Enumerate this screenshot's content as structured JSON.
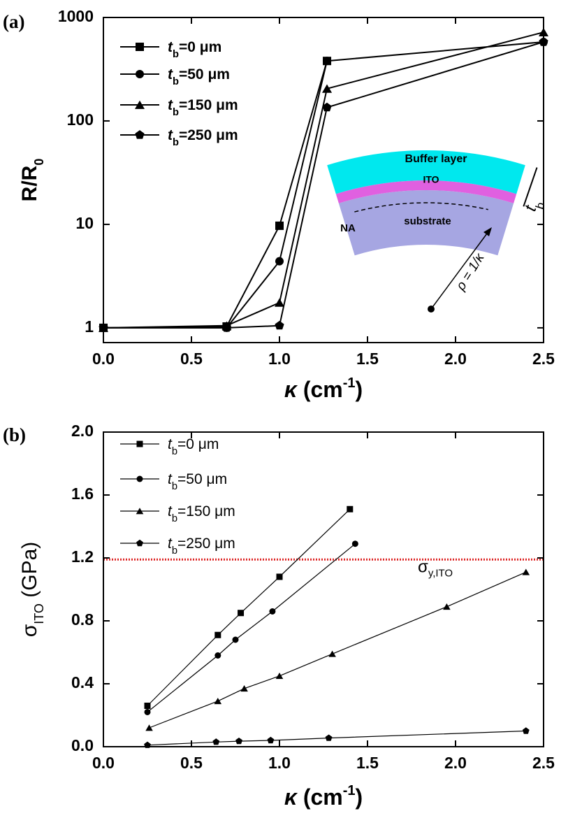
{
  "chart_data": [
    {
      "type": "line",
      "panel_label": "(a)",
      "y_scale": "log",
      "legend": "upper left",
      "x_label": [
        "κ",
        " (cm",
        "-1",
        ")"
      ],
      "y_label": [
        "R/R",
        "0"
      ],
      "x": [
        0,
        0.7,
        1.0,
        1.27,
        2.5
      ],
      "xlim": [
        0,
        2.5
      ],
      "xticks": [
        {
          "value": 0,
          "label": "0.0"
        },
        0.5,
        {
          "value": 1,
          "label": "1.0"
        },
        1.5,
        {
          "value": 2,
          "label": "2.0"
        },
        2.5
      ],
      "ylim": [
        0.72,
        1000
      ],
      "yticks": [
        1,
        10,
        100,
        1000
      ],
      "series": [
        {
          "name": "tb=0 μm",
          "color": "#000000",
          "marker": "square",
          "values": [
            1,
            1.03,
            9.7,
            380,
            null
          ]
        },
        {
          "name": "tb=50 μm",
          "color": "#000000",
          "marker": "circle",
          "values": [
            1,
            1.0,
            4.4,
            380,
            580
          ]
        },
        {
          "name": "tb=150 μm",
          "color": "#000000",
          "marker": "triangle",
          "values": [
            1,
            1.05,
            1.75,
            205,
            720
          ]
        },
        {
          "name": "tb=250 μm",
          "color": "#000000",
          "marker": "pentagon",
          "values": [
            1,
            1.0,
            1.05,
            135,
            580
          ]
        }
      ],
      "inset_labels": {
        "buffer": "Buffer layer",
        "ito": "ITO",
        "substrate": "substrate",
        "na": "NA",
        "thickness": "tb",
        "radius": "ρ = 1/κ"
      }
    },
    {
      "type": "line",
      "panel_label": "(b)",
      "legend": "upper left",
      "x_label": [
        "κ",
        " (cm",
        "-1",
        ")"
      ],
      "y_label": [
        "σ",
        "ITO",
        " (GPa)"
      ],
      "xlim": [
        0,
        2.5
      ],
      "xticks": [
        {
          "value": 0,
          "label": "0.0"
        },
        0.5,
        {
          "value": 1,
          "label": "1.0"
        },
        1.5,
        {
          "value": 2,
          "label": "2.0"
        },
        2.5
      ],
      "ylim": [
        0,
        2.0
      ],
      "yticks": [
        {
          "value": 0,
          "label": "0.0"
        },
        0.4,
        0.8,
        1.2,
        1.6,
        {
          "value": 2,
          "label": "2.0"
        }
      ],
      "series": [
        {
          "name": "tb=0 μm",
          "color": "#000000",
          "marker": "square",
          "x": [
            0.25,
            0.65,
            0.78,
            1.0,
            1.4
          ],
          "values": [
            0.26,
            0.71,
            0.85,
            1.08,
            1.51
          ]
        },
        {
          "name": "tb=50 μm",
          "color": "#000000",
          "marker": "circle",
          "x": [
            0.25,
            0.65,
            0.75,
            0.96,
            1.43
          ],
          "values": [
            0.22,
            0.58,
            0.68,
            0.86,
            1.29
          ]
        },
        {
          "name": "tb=150 μm",
          "color": "#000000",
          "marker": "triangle",
          "x": [
            0.26,
            0.65,
            0.8,
            1.0,
            1.3,
            1.95,
            2.4
          ],
          "values": [
            0.12,
            0.29,
            0.37,
            0.45,
            0.59,
            0.89,
            1.11
          ]
        },
        {
          "name": "tb=250 μm",
          "color": "#000000",
          "marker": "pentagon",
          "x": [
            0.25,
            0.64,
            0.77,
            0.95,
            1.28,
            2.4
          ],
          "values": [
            0.01,
            0.03,
            0.035,
            0.04,
            0.055,
            0.1
          ]
        }
      ],
      "reference_line": {
        "value": 1.19,
        "color": "#dd2222",
        "label": [
          "σ",
          "y,ITO"
        ]
      }
    }
  ]
}
